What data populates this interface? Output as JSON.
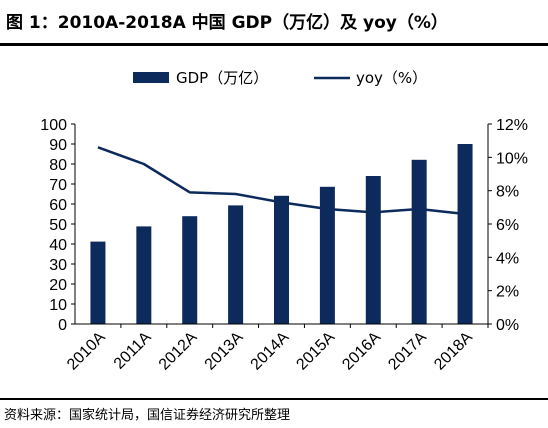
{
  "header": {
    "title": "图 1：2010A-2018A 中国 GDP（万亿）及 yoy（%）"
  },
  "footer": {
    "source": "资料来源：国家统计局，国信证券经济研究所整理"
  },
  "colors": {
    "bar": "#0d2a5c",
    "line": "#0d2a5c",
    "axis": "#000000"
  },
  "chart_data": {
    "type": "bar",
    "categories": [
      "2010A",
      "2011A",
      "2012A",
      "2013A",
      "2014A",
      "2015A",
      "2016A",
      "2017A",
      "2018A"
    ],
    "series": [
      {
        "name": "GDP（万亿）",
        "type": "bar",
        "axis": "left",
        "values": [
          41.2,
          48.8,
          53.9,
          59.3,
          64.1,
          68.6,
          74.0,
          82.1,
          90.0
        ]
      },
      {
        "name": "yoy（%）",
        "type": "line",
        "axis": "right",
        "values": [
          10.6,
          9.6,
          7.9,
          7.8,
          7.3,
          6.9,
          6.7,
          6.9,
          6.6
        ]
      }
    ],
    "left_axis": {
      "ylim": [
        0,
        100
      ],
      "ticks": [
        "0",
        "10",
        "20",
        "30",
        "40",
        "50",
        "60",
        "70",
        "80",
        "90",
        "100"
      ]
    },
    "right_axis": {
      "ylim": [
        0,
        12
      ],
      "ticks": [
        "0%",
        "2%",
        "4%",
        "6%",
        "8%",
        "10%",
        "12%"
      ]
    },
    "legend": {
      "placement": "top"
    },
    "grid": false
  }
}
